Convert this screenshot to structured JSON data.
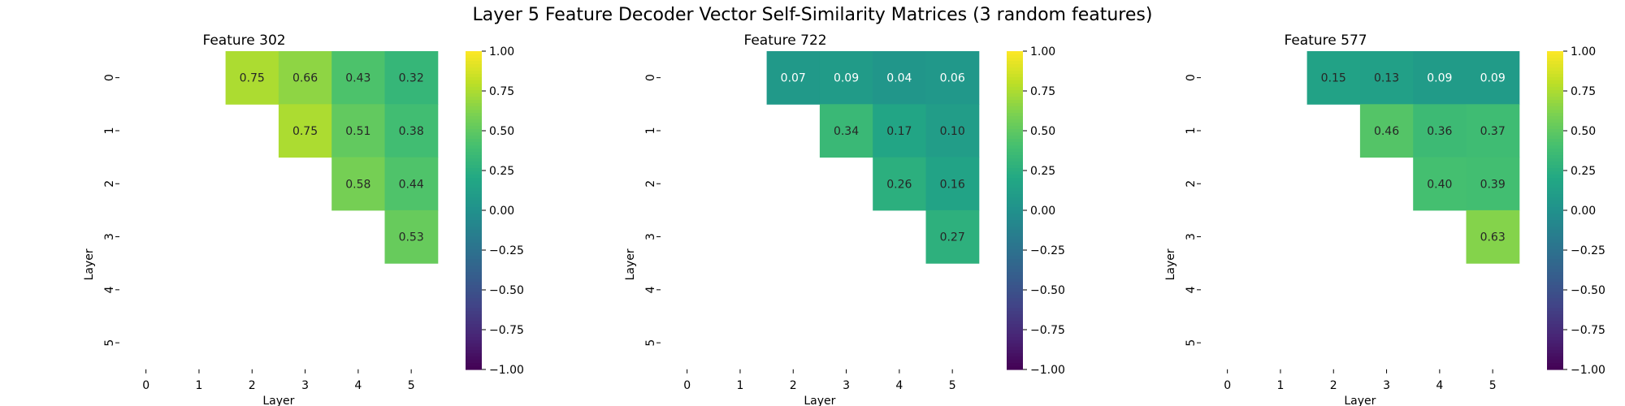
{
  "figure": {
    "title": "Layer 5 Feature Decoder Vector Self-Similarity Matrices (3 random features)"
  },
  "chart_data": [
    {
      "type": "heatmap",
      "title": "Feature 302",
      "xlabel": "Layer",
      "ylabel": "Layer",
      "x_ticks": [
        "0",
        "1",
        "2",
        "3",
        "4",
        "5"
      ],
      "y_ticks": [
        "0",
        "1",
        "2",
        "3",
        "4",
        "5"
      ],
      "values": [
        [
          null,
          null,
          0.75,
          0.66,
          0.43,
          0.32
        ],
        [
          null,
          null,
          null,
          0.75,
          0.51,
          0.38
        ],
        [
          null,
          null,
          null,
          null,
          0.58,
          0.44
        ],
        [
          null,
          null,
          null,
          null,
          null,
          0.53
        ],
        [
          null,
          null,
          null,
          null,
          null,
          null
        ],
        [
          null,
          null,
          null,
          null,
          null,
          null
        ]
      ],
      "labels": [
        [
          null,
          null,
          "0.75",
          "0.66",
          "0.43",
          "0.32"
        ],
        [
          null,
          null,
          null,
          "0.75",
          "0.51",
          "0.38"
        ],
        [
          null,
          null,
          null,
          null,
          "0.58",
          "0.44"
        ],
        [
          null,
          null,
          null,
          null,
          null,
          "0.53"
        ],
        [
          null,
          null,
          null,
          null,
          null,
          null
        ],
        [
          null,
          null,
          null,
          null,
          null,
          null
        ]
      ],
      "colormap": "viridis",
      "vmin": -1,
      "vmax": 1,
      "colorbar_ticks": [
        "1.00",
        "0.75",
        "0.50",
        "0.25",
        "0.00",
        "−0.25",
        "−0.50",
        "−0.75",
        "−1.00"
      ]
    },
    {
      "type": "heatmap",
      "title": "Feature 722",
      "xlabel": "Layer",
      "ylabel": "Layer",
      "x_ticks": [
        "0",
        "1",
        "2",
        "3",
        "4",
        "5"
      ],
      "y_ticks": [
        "0",
        "1",
        "2",
        "3",
        "4",
        "5"
      ],
      "values": [
        [
          null,
          null,
          0.07,
          0.09,
          0.04,
          0.06
        ],
        [
          null,
          null,
          null,
          0.34,
          0.17,
          0.1
        ],
        [
          null,
          null,
          null,
          null,
          0.26,
          0.16
        ],
        [
          null,
          null,
          null,
          null,
          null,
          0.27
        ],
        [
          null,
          null,
          null,
          null,
          null,
          null
        ],
        [
          null,
          null,
          null,
          null,
          null,
          null
        ]
      ],
      "labels": [
        [
          null,
          null,
          "0.07",
          "0.09",
          "0.04",
          "0.06"
        ],
        [
          null,
          null,
          null,
          "0.34",
          "0.17",
          "0.10"
        ],
        [
          null,
          null,
          null,
          null,
          "0.26",
          "0.16"
        ],
        [
          null,
          null,
          null,
          null,
          null,
          "0.27"
        ],
        [
          null,
          null,
          null,
          null,
          null,
          null
        ],
        [
          null,
          null,
          null,
          null,
          null,
          null
        ]
      ],
      "colormap": "viridis",
      "vmin": -1,
      "vmax": 1,
      "colorbar_ticks": [
        "1.00",
        "0.75",
        "0.50",
        "0.25",
        "0.00",
        "−0.25",
        "−0.50",
        "−0.75",
        "−1.00"
      ]
    },
    {
      "type": "heatmap",
      "title": "Feature 577",
      "xlabel": "Layer",
      "ylabel": "Layer",
      "x_ticks": [
        "0",
        "1",
        "2",
        "3",
        "4",
        "5"
      ],
      "y_ticks": [
        "0",
        "1",
        "2",
        "3",
        "4",
        "5"
      ],
      "values": [
        [
          null,
          null,
          0.15,
          0.13,
          0.09,
          0.09
        ],
        [
          null,
          null,
          null,
          0.46,
          0.36,
          0.37
        ],
        [
          null,
          null,
          null,
          null,
          0.4,
          0.39
        ],
        [
          null,
          null,
          null,
          null,
          null,
          0.63
        ],
        [
          null,
          null,
          null,
          null,
          null,
          null
        ],
        [
          null,
          null,
          null,
          null,
          null,
          null
        ]
      ],
      "labels": [
        [
          null,
          null,
          "0.15",
          "0.13",
          "0.09",
          "0.09"
        ],
        [
          null,
          null,
          null,
          "0.46",
          "0.36",
          "0.37"
        ],
        [
          null,
          null,
          null,
          null,
          "0.40",
          "0.39"
        ],
        [
          null,
          null,
          null,
          null,
          null,
          "0.63"
        ],
        [
          null,
          null,
          null,
          null,
          null,
          null
        ],
        [
          null,
          null,
          null,
          null,
          null,
          null
        ]
      ],
      "colormap": "viridis",
      "vmin": -1,
      "vmax": 1,
      "colorbar_ticks": [
        "1.00",
        "0.75",
        "0.50",
        "0.25",
        "0.00",
        "−0.25",
        "−0.50",
        "−0.75",
        "−1.00"
      ]
    }
  ]
}
